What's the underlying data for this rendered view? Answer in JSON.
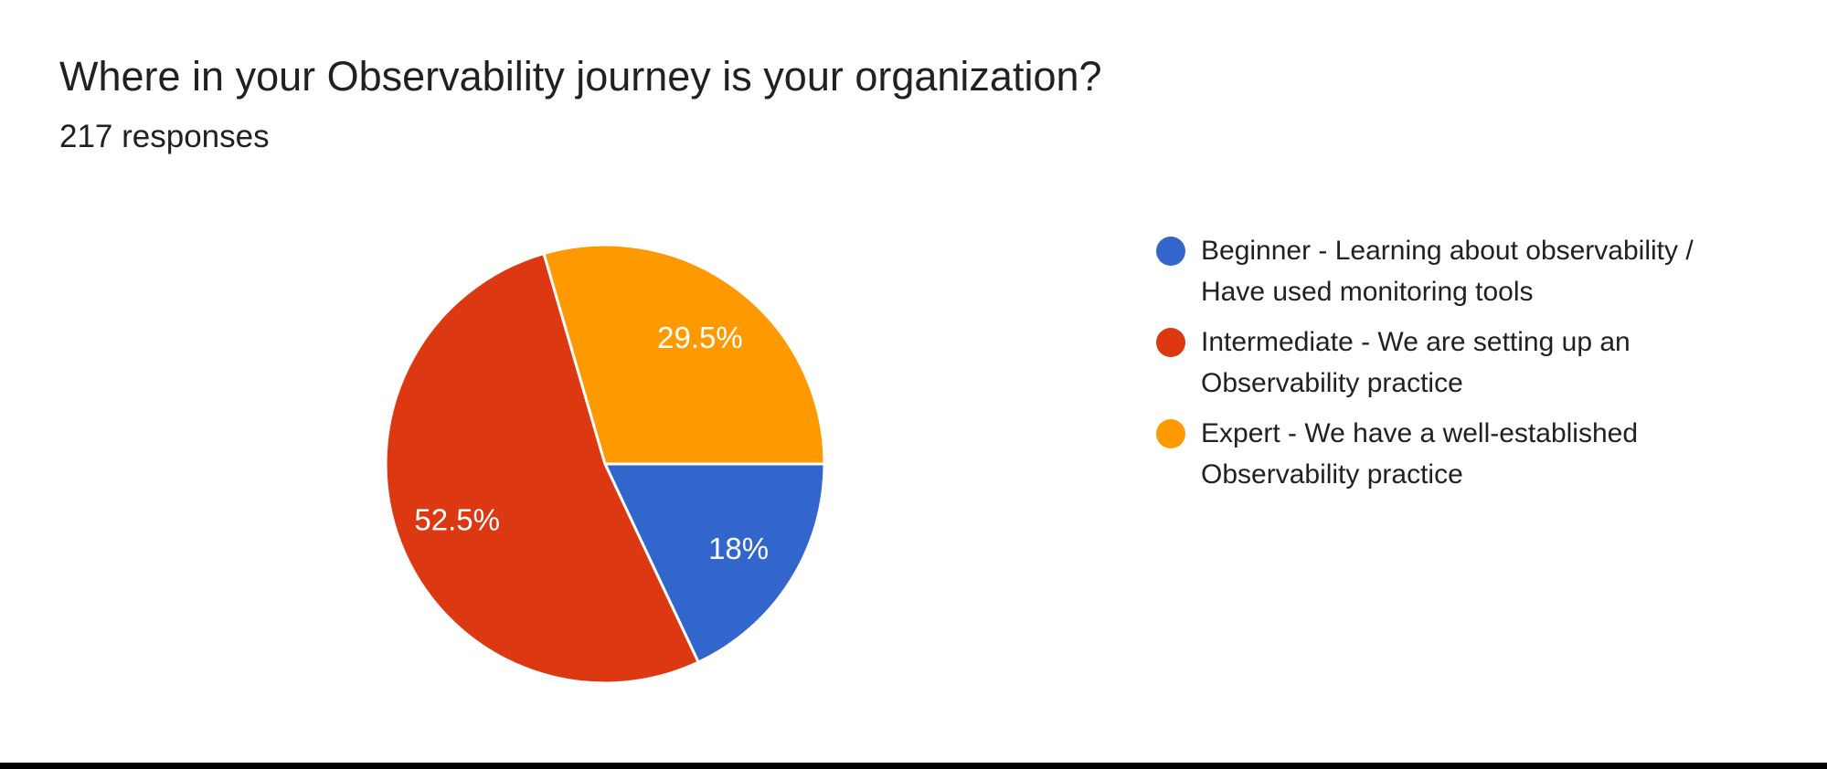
{
  "page": {
    "background_color": "#ffffff",
    "bottom_border_color": "#000000"
  },
  "header": {
    "title": "Where in your Observability journey is your organization?",
    "subtitle": "217 responses"
  },
  "chart_data": {
    "type": "pie",
    "title": "Where in your Observability journey is your organization?",
    "subtitle": "217 responses",
    "response_count": 217,
    "legend_position": "right",
    "start_angle_deg_clockwise_from_top": 90,
    "direction": "clockwise",
    "label_color": "#ffffff",
    "slices": [
      {
        "name": "beginner",
        "label": "Beginner - Learning about observability / Have used monitoring tools",
        "legend_lines": [
          "Beginner - Learning about observability /",
          "Have used monitoring tools"
        ],
        "value": 18,
        "display": "18%",
        "color": "#3366CC"
      },
      {
        "name": "intermediate",
        "label": "Intermediate - We are setting up an Observability practice",
        "legend_lines": [
          "Intermediate - We are setting up an",
          "Observability practice"
        ],
        "value": 52.5,
        "display": "52.5%",
        "color": "#DC3912"
      },
      {
        "name": "expert",
        "label": "Expert - We have a well-established Observability practice",
        "legend_lines": [
          "Expert - We have a well-established",
          "Observability practice"
        ],
        "value": 29.5,
        "display": "29.5%",
        "color": "#FF9900"
      }
    ]
  }
}
